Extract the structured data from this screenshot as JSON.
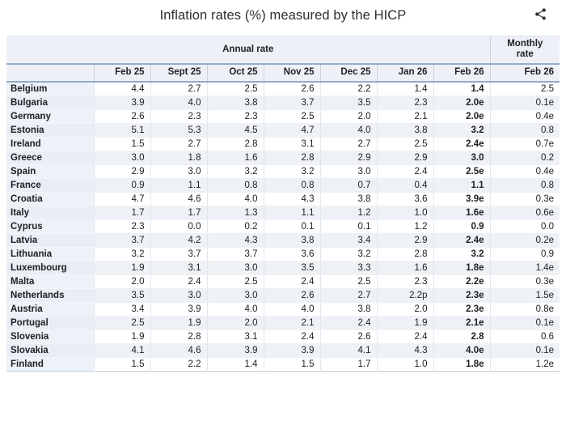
{
  "title": "Inflation rates (%) measured by the HICP",
  "share": {
    "icon": "share-icon"
  },
  "colors": {
    "header_bg": "#edf1f7",
    "blue_divider": "#93abca",
    "row_stripe": "#eef1f6",
    "label_bg": "#edf2f8",
    "text": "#202122"
  },
  "chart_data": {
    "type": "table",
    "title": "Inflation rates (%) measured by the HICP",
    "group_headers": {
      "annual": "Annual rate",
      "monthly": "Monthly rate"
    },
    "columns": [
      "Feb 25",
      "Sept 25",
      "Oct 25",
      "Nov 25",
      "Dec 25",
      "Jan 26",
      "Feb 26",
      "Feb 26"
    ],
    "rows": [
      {
        "country": "Belgium",
        "values": [
          "4.4",
          "2.7",
          "2.5",
          "2.6",
          "2.2",
          "1.4",
          "1.4",
          "2.5"
        ]
      },
      {
        "country": "Bulgaria",
        "values": [
          "3.9",
          "4.0",
          "3.8",
          "3.7",
          "3.5",
          "2.3",
          "2.0e",
          "0.1e"
        ]
      },
      {
        "country": "Germany",
        "values": [
          "2.6",
          "2.3",
          "2.3",
          "2.5",
          "2.0",
          "2.1",
          "2.0e",
          "0.4e"
        ]
      },
      {
        "country": "Estonia",
        "values": [
          "5.1",
          "5.3",
          "4.5",
          "4.7",
          "4.0",
          "3.8",
          "3.2",
          "0.8"
        ]
      },
      {
        "country": "Ireland",
        "values": [
          "1.5",
          "2.7",
          "2.8",
          "3.1",
          "2.7",
          "2.5",
          "2.4e",
          "0.7e"
        ]
      },
      {
        "country": "Greece",
        "values": [
          "3.0",
          "1.8",
          "1.6",
          "2.8",
          "2.9",
          "2.9",
          "3.0",
          "0.2"
        ]
      },
      {
        "country": "Spain",
        "values": [
          "2.9",
          "3.0",
          "3.2",
          "3.2",
          "3.0",
          "2.4",
          "2.5e",
          "0.4e"
        ]
      },
      {
        "country": "France",
        "values": [
          "0.9",
          "1.1",
          "0.8",
          "0.8",
          "0.7",
          "0.4",
          "1.1",
          "0.8"
        ]
      },
      {
        "country": "Croatia",
        "values": [
          "4.7",
          "4.6",
          "4.0",
          "4.3",
          "3.8",
          "3.6",
          "3.9e",
          "0.3e"
        ]
      },
      {
        "country": "Italy",
        "values": [
          "1.7",
          "1.7",
          "1.3",
          "1.1",
          "1.2",
          "1.0",
          "1.6e",
          "0.6e"
        ]
      },
      {
        "country": "Cyprus",
        "values": [
          "2.3",
          "0.0",
          "0.2",
          "0.1",
          "0.1",
          "1.2",
          "0.9",
          "0.0"
        ]
      },
      {
        "country": "Latvia",
        "values": [
          "3.7",
          "4.2",
          "4.3",
          "3.8",
          "3.4",
          "2.9",
          "2.4e",
          "0.2e"
        ]
      },
      {
        "country": "Lithuania",
        "values": [
          "3.2",
          "3.7",
          "3.7",
          "3.6",
          "3.2",
          "2.8",
          "3.2",
          "0.9"
        ]
      },
      {
        "country": "Luxembourg",
        "values": [
          "1.9",
          "3.1",
          "3.0",
          "3.5",
          "3.3",
          "1.6",
          "1.8e",
          "1.4e"
        ]
      },
      {
        "country": "Malta",
        "values": [
          "2.0",
          "2.4",
          "2.5",
          "2.4",
          "2.5",
          "2.3",
          "2.2e",
          "0.3e"
        ]
      },
      {
        "country": "Netherlands",
        "values": [
          "3.5",
          "3.0",
          "3.0",
          "2.6",
          "2.7",
          "2.2p",
          "2.3e",
          "1.5e"
        ]
      },
      {
        "country": "Austria",
        "values": [
          "3.4",
          "3.9",
          "4.0",
          "4.0",
          "3.8",
          "2.0",
          "2.3e",
          "0.8e"
        ]
      },
      {
        "country": "Portugal",
        "values": [
          "2.5",
          "1.9",
          "2.0",
          "2.1",
          "2.4",
          "1.9",
          "2.1e",
          "0.1e"
        ]
      },
      {
        "country": "Slovenia",
        "values": [
          "1.9",
          "2.8",
          "3.1",
          "2.4",
          "2.6",
          "2.4",
          "2.8",
          "0.6"
        ]
      },
      {
        "country": "Slovakia",
        "values": [
          "4.1",
          "4.6",
          "3.9",
          "3.9",
          "4.1",
          "4.3",
          "4.0e",
          "0.1e"
        ]
      },
      {
        "country": "Finland",
        "values": [
          "1.5",
          "2.2",
          "1.4",
          "1.5",
          "1.7",
          "1.0",
          "1.8e",
          "1.2e"
        ]
      }
    ]
  }
}
